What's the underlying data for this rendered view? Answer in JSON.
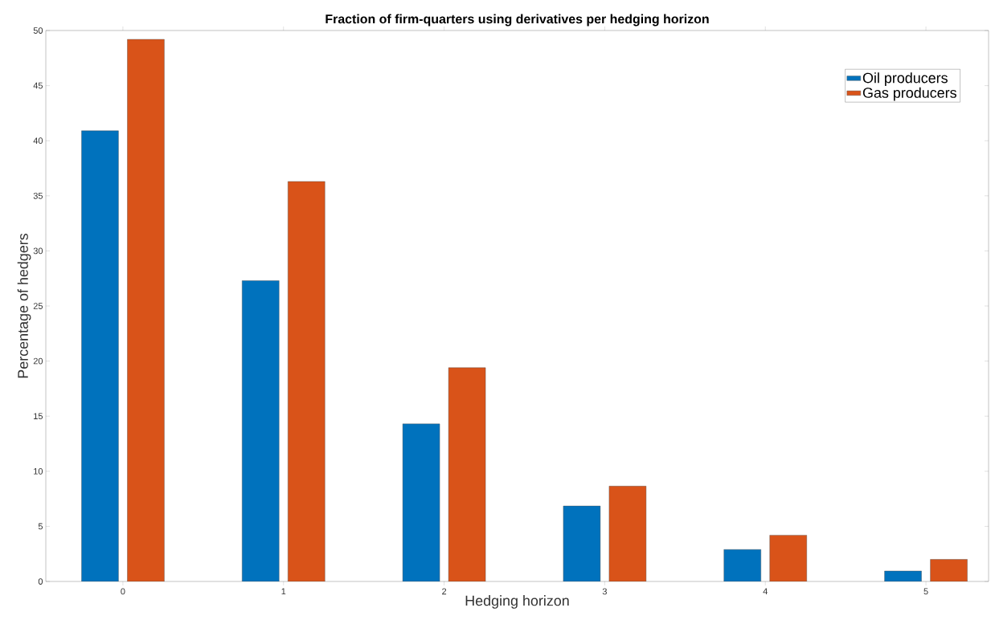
{
  "chart_data": {
    "type": "bar",
    "title": "Fraction of firm-quarters using derivatives per hedging horizon",
    "xlabel": "Hedging horizon",
    "ylabel": "Percentage of hedgers",
    "x": [
      0,
      1,
      2,
      3,
      4,
      5
    ],
    "series": [
      {
        "name": "Oil producers",
        "color": "#0072bd",
        "values": [
          40.9,
          27.3,
          14.3,
          6.85,
          2.9,
          0.95
        ]
      },
      {
        "name": "Gas producers",
        "color": "#d95319",
        "values": [
          49.2,
          36.3,
          19.4,
          8.65,
          4.2,
          2.0
        ]
      }
    ],
    "xlim": [
      -0.48,
      5.39
    ],
    "ylim": [
      0,
      50
    ],
    "xticks": [
      0,
      1,
      2,
      3,
      4,
      5
    ],
    "yticks": [
      0,
      5,
      10,
      15,
      20,
      25,
      30,
      35,
      40,
      45,
      50
    ],
    "grid": false,
    "legend": "top right"
  }
}
